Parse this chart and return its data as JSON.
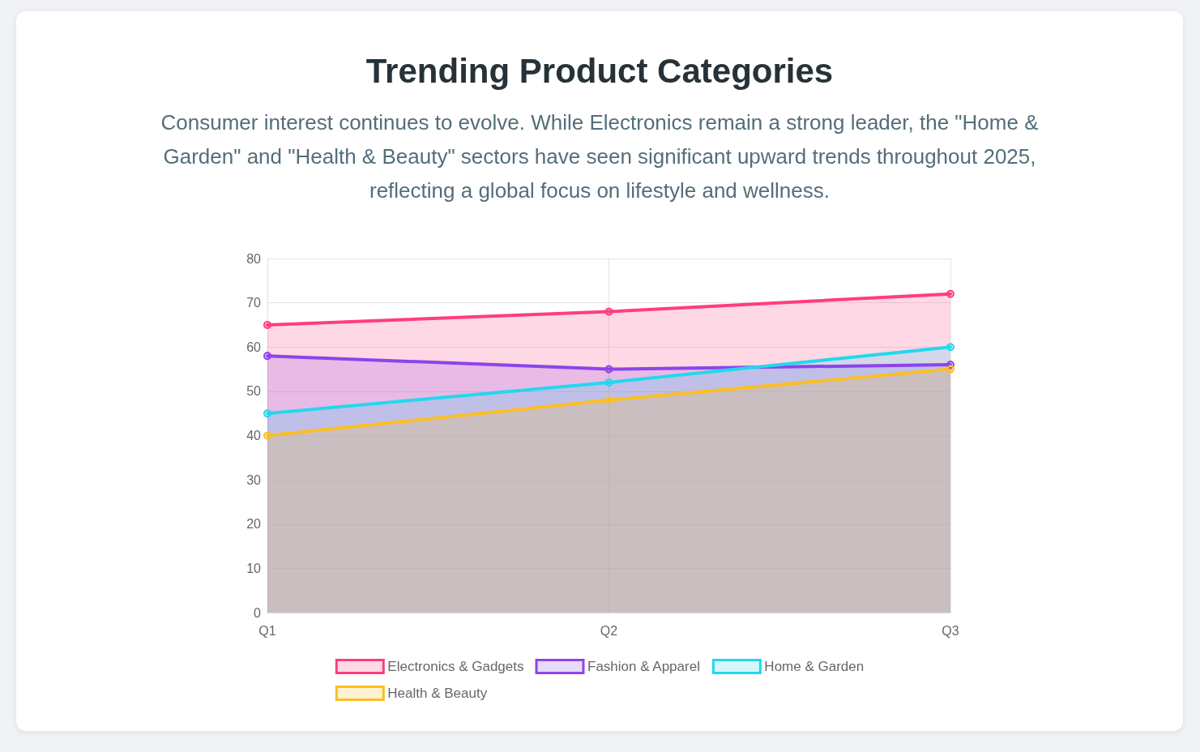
{
  "chart_data": {
    "type": "area",
    "title": "Trending Product Categories",
    "subtitle": "Consumer interest continues to evolve. While Electronics remain a strong leader, the \"Home & Garden\" and \"Health & Beauty\" sectors have seen significant upward trends throughout 2025, reflecting a global focus on lifestyle and wellness.",
    "categories": [
      "Q1",
      "Q2",
      "Q3"
    ],
    "series": [
      {
        "name": "Electronics & Gadgets",
        "color": "#ff3d7f",
        "values": [
          65,
          68,
          72
        ]
      },
      {
        "name": "Fashion & Apparel",
        "color": "#8c44ea",
        "values": [
          58,
          55,
          56
        ]
      },
      {
        "name": "Home & Garden",
        "color": "#22d8ee",
        "values": [
          45,
          52,
          60
        ]
      },
      {
        "name": "Health & Beauty",
        "color": "#fbbf24",
        "values": [
          40,
          48,
          55
        ]
      }
    ],
    "ylim": [
      0,
      80
    ],
    "yticks": [
      0,
      10,
      20,
      30,
      40,
      50,
      60,
      70,
      80
    ],
    "grid": true,
    "legend": "bottom",
    "marker": "circle",
    "line_style": "solid"
  }
}
